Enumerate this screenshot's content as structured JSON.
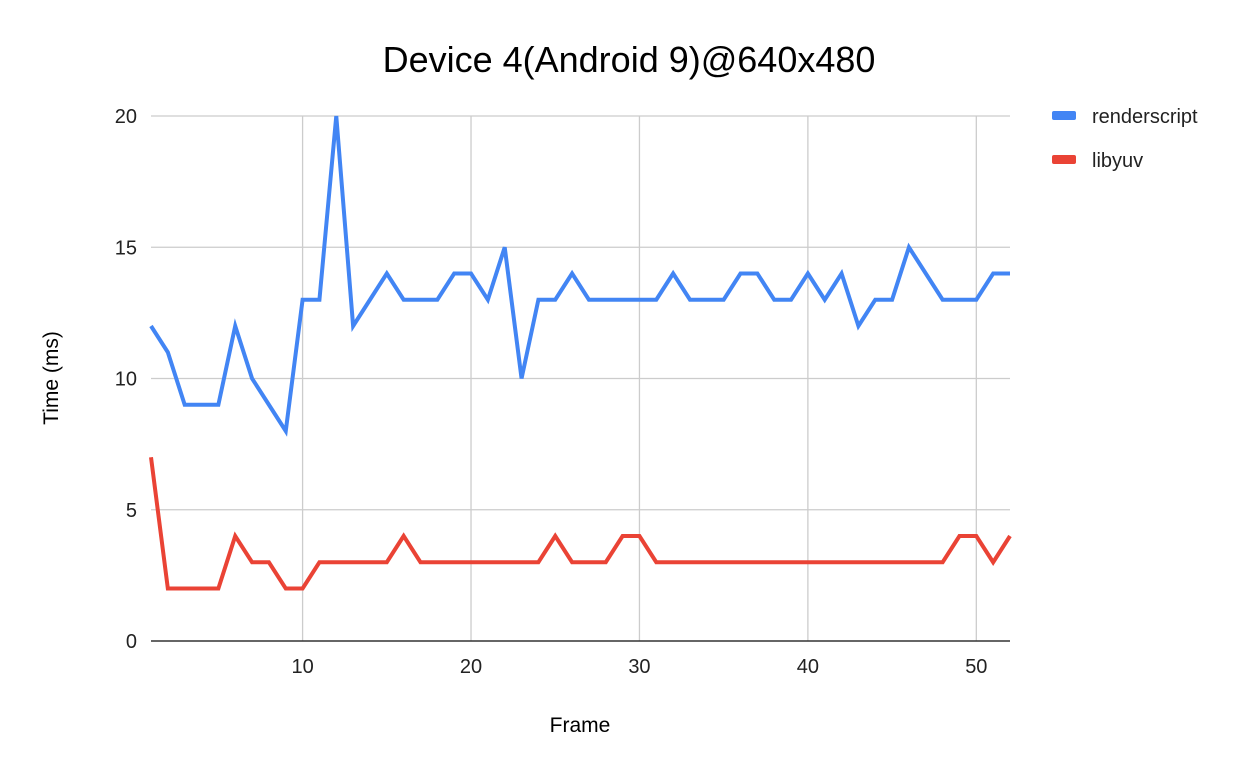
{
  "chart_data": {
    "type": "line",
    "title": "Device 4(Android 9)@640x480",
    "xlabel": "Frame",
    "ylabel": "Time (ms)",
    "xlim": [
      1,
      52
    ],
    "ylim": [
      0,
      20
    ],
    "x_ticks": [
      10,
      20,
      30,
      40,
      50
    ],
    "y_ticks": [
      0,
      5,
      10,
      15,
      20
    ],
    "grid": true,
    "legend_position": "top-right",
    "x": [
      1,
      2,
      3,
      4,
      5,
      6,
      7,
      8,
      9,
      10,
      11,
      12,
      13,
      14,
      15,
      16,
      17,
      18,
      19,
      20,
      21,
      22,
      23,
      24,
      25,
      26,
      27,
      28,
      29,
      30,
      31,
      32,
      33,
      34,
      35,
      36,
      37,
      38,
      39,
      40,
      41,
      42,
      43,
      44,
      45,
      46,
      47,
      48,
      49,
      50,
      51,
      52
    ],
    "series": [
      {
        "name": "renderscript",
        "color": "#4285F4",
        "values": [
          12,
          11,
          9,
          9,
          9,
          12,
          10,
          9,
          8,
          13,
          13,
          20,
          12,
          13,
          14,
          13,
          13,
          13,
          14,
          14,
          13,
          15,
          10,
          13,
          13,
          14,
          13,
          13,
          13,
          13,
          13,
          14,
          13,
          13,
          13,
          14,
          14,
          13,
          13,
          14,
          13,
          14,
          12,
          13,
          13,
          15,
          14,
          13,
          13,
          13,
          14,
          14
        ]
      },
      {
        "name": "libyuv",
        "color": "#EA4335",
        "values": [
          7,
          2,
          2,
          2,
          2,
          4,
          3,
          3,
          2,
          2,
          3,
          3,
          3,
          3,
          3,
          4,
          3,
          3,
          3,
          3,
          3,
          3,
          3,
          3,
          4,
          3,
          3,
          3,
          4,
          4,
          3,
          3,
          3,
          3,
          3,
          3,
          3,
          3,
          3,
          3,
          3,
          3,
          3,
          3,
          3,
          3,
          3,
          3,
          4,
          4,
          3,
          4
        ]
      }
    ]
  }
}
